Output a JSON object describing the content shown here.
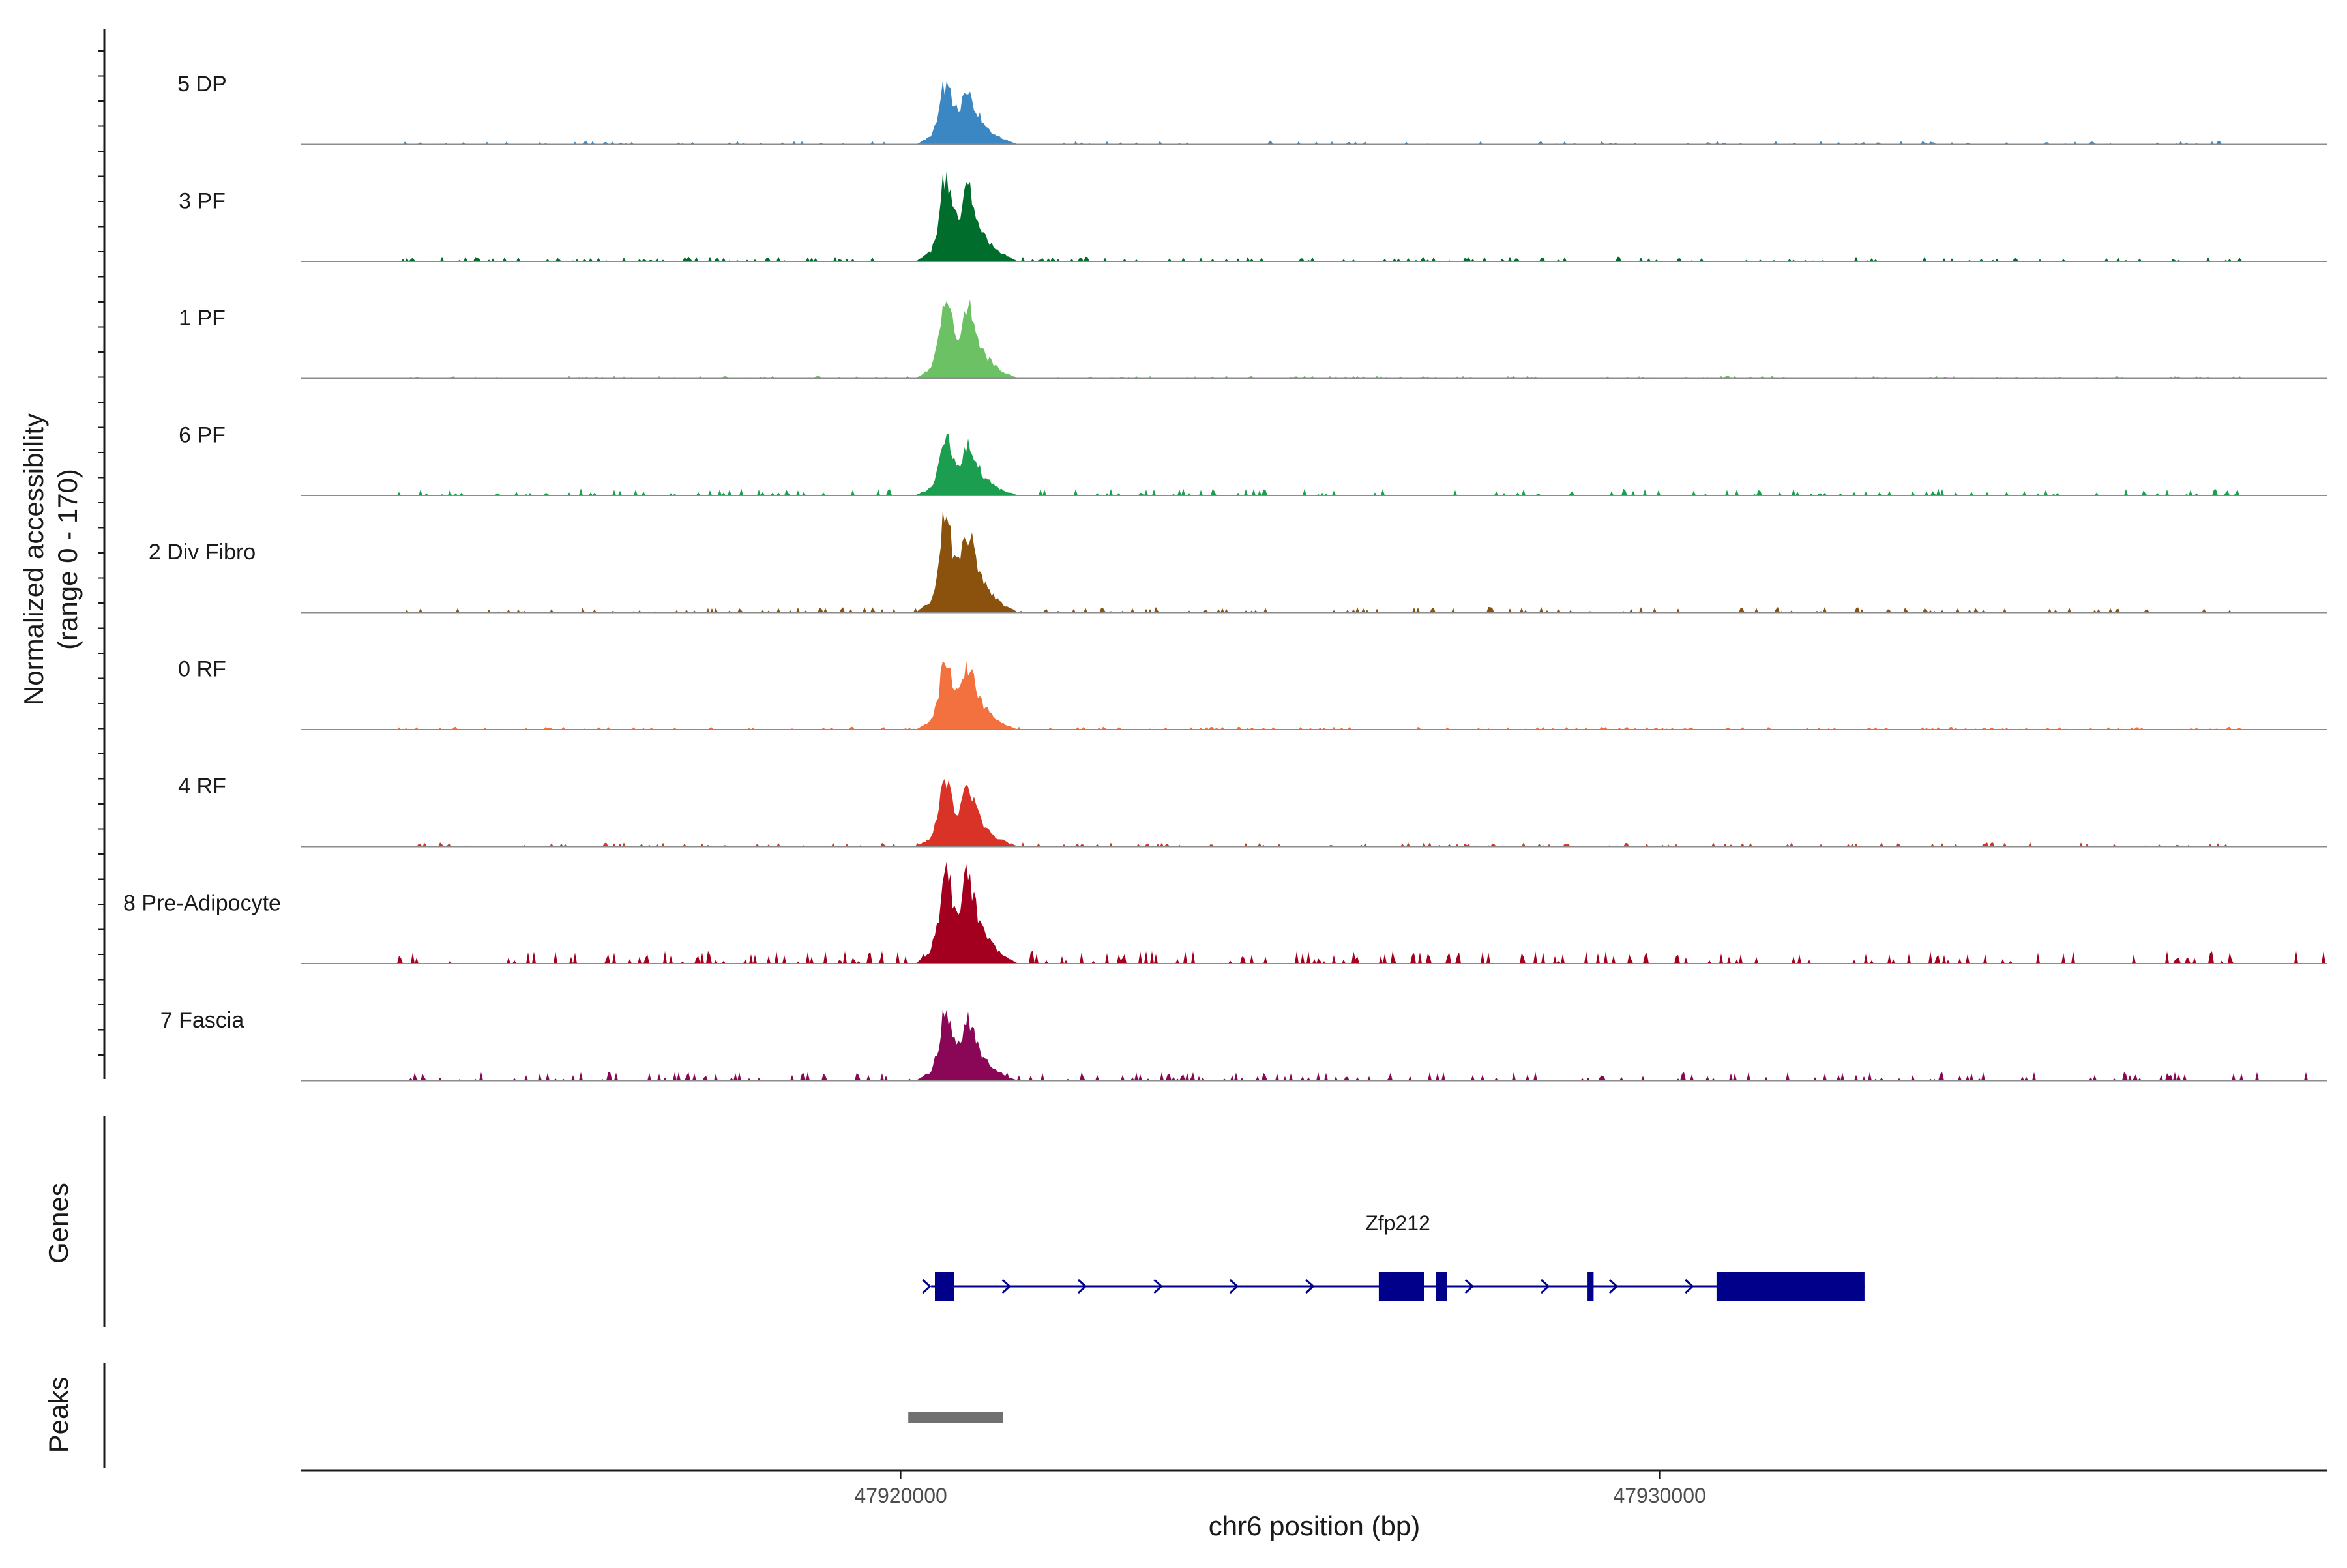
{
  "chart_data": {
    "type": "area",
    "title": "",
    "y_axis": {
      "title_line1": "Normalized accessibility",
      "title_line2": "(range 0 - 170)",
      "range": [
        0,
        170
      ]
    },
    "x_axis": {
      "title": "chr6 position (bp)",
      "range": [
        47912100,
        47938800
      ],
      "ticks": [
        {
          "value": 47920000,
          "label": "47920000"
        },
        {
          "value": 47930000,
          "label": "47930000"
        }
      ]
    },
    "peak_profile": {
      "positions": [
        47920200,
        47920400,
        47920500,
        47920550,
        47920620,
        47920700,
        47920780,
        47920850,
        47920920,
        47921000,
        47921100,
        47921250,
        47921400,
        47921550
      ],
      "shape": [
        0,
        0.12,
        0.45,
        0.88,
        0.95,
        0.55,
        0.5,
        0.82,
        0.8,
        0.5,
        0.3,
        0.14,
        0.06,
        0
      ]
    },
    "tracks": [
      {
        "label": "5 DP",
        "color": "#3a87c3",
        "peak_height": 0.56,
        "noise": 0.025,
        "seed": 11
      },
      {
        "label": "3 PF",
        "color": "#006d2c",
        "peak_height": 0.74,
        "noise": 0.035,
        "seed": 23
      },
      {
        "label": "1 PF",
        "color": "#6cc164",
        "peak_height": 0.72,
        "noise": 0.02,
        "seed": 37
      },
      {
        "label": "6 PF",
        "color": "#1b9e50",
        "peak_height": 0.54,
        "noise": 0.05,
        "seed": 41
      },
      {
        "label": "2 Div Fibro",
        "color": "#8b520e",
        "peak_height": 0.84,
        "noise": 0.04,
        "seed": 53
      },
      {
        "label": "0 RF",
        "color": "#f3703f",
        "peak_height": 0.65,
        "noise": 0.02,
        "seed": 67
      },
      {
        "label": "4 RF",
        "color": "#d93227",
        "peak_height": 0.6,
        "noise": 0.03,
        "seed": 71
      },
      {
        "label": "8 Pre-Adipocyte",
        "color": "#a3001f",
        "peak_height": 0.89,
        "noise": 0.09,
        "seed": 83
      },
      {
        "label": "7 Fascia",
        "color": "#8a0656",
        "peak_height": 0.62,
        "noise": 0.06,
        "seed": 97
      }
    ],
    "genes_track": {
      "title": "Genes",
      "gene": {
        "name": "Zfp212",
        "strand": "+",
        "start": 47920400,
        "end": 47932700,
        "color": "#00008b",
        "exons": [
          [
            47920450,
            47920700
          ],
          [
            47926300,
            47926900
          ],
          [
            47927050,
            47927200
          ],
          [
            47929050,
            47929130
          ],
          [
            47930750,
            47932700
          ]
        ],
        "arrows": [
          47920350,
          47921400,
          47922400,
          47923400,
          47924400,
          47925400,
          47927500,
          47928500,
          47929400,
          47930400
        ]
      }
    },
    "peaks_track": {
      "title": "Peaks",
      "color": "#707070",
      "regions": [
        [
          47920100,
          47921350
        ]
      ]
    }
  }
}
